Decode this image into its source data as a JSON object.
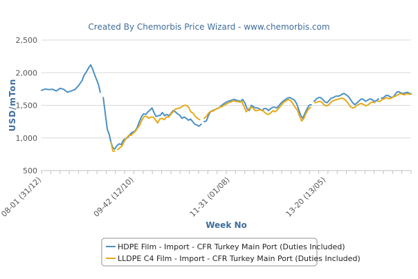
{
  "chart_data": {
    "type": "line",
    "title": "Created By Chemorbis Price Wizard - www.chemorbis.com",
    "xlabel": "Week No",
    "ylabel": "USD/mTon",
    "ylim": [
      500,
      2500
    ],
    "yticks": [
      "500",
      "1,000",
      "1,500",
      "2,000",
      "2,500"
    ],
    "x_range": [
      0,
      100
    ],
    "x_ticks": [
      {
        "x": 0,
        "label": "08-01 (31/12)"
      },
      {
        "x": 25,
        "label": "09-42 (12/10)"
      },
      {
        "x": 51,
        "label": "11-31 (01/08)"
      },
      {
        "x": 77,
        "label": "13-20 (13/05)"
      }
    ],
    "grid": "horizontal",
    "legend_position": "bottom",
    "series": [
      {
        "name": "HDPE Film - Import - CFR Turkey Main Port (Duties Included)",
        "color": "#4a90c2",
        "points": [
          [
            0,
            1730
          ],
          [
            1,
            1750
          ],
          [
            2,
            1740
          ],
          [
            3,
            1745
          ],
          [
            4,
            1720
          ],
          [
            5,
            1760
          ],
          [
            6,
            1745
          ],
          [
            7,
            1700
          ],
          [
            8,
            1720
          ],
          [
            9,
            1740
          ],
          [
            10,
            1800
          ],
          [
            11,
            1880
          ],
          [
            11.5,
            1960
          ],
          [
            12,
            2000
          ],
          [
            12.8,
            2080
          ],
          [
            13.3,
            2120
          ],
          [
            13.8,
            2060
          ],
          [
            14.5,
            1950
          ],
          [
            15,
            1880
          ],
          [
            15.4,
            1820
          ],
          [
            15.9,
            1700
          ],
          [
            null,
            null
          ],
          [
            16.7,
            1620
          ],
          [
            17.3,
            1350
          ],
          [
            17.8,
            1130
          ],
          [
            18.3,
            1060
          ],
          [
            18.8,
            930
          ],
          [
            19.3,
            850
          ],
          [
            19.8,
            830
          ],
          [
            20.4,
            880
          ],
          [
            21,
            910
          ],
          [
            21.6,
            900
          ],
          [
            22.2,
            970
          ],
          [
            22.8,
            990
          ],
          [
            23.4,
            1010
          ],
          [
            24,
            1060
          ],
          [
            24.6,
            1090
          ],
          [
            25.2,
            1100
          ],
          [
            25.8,
            1150
          ],
          [
            26.4,
            1240
          ],
          [
            27,
            1320
          ],
          [
            27.6,
            1370
          ],
          [
            28.2,
            1360
          ],
          [
            28.8,
            1400
          ],
          [
            29.4,
            1430
          ],
          [
            29.9,
            1460
          ],
          [
            30.5,
            1380
          ],
          [
            31,
            1330
          ],
          [
            31.6,
            1340
          ],
          [
            32.2,
            1350
          ],
          [
            32.7,
            1390
          ],
          [
            33.3,
            1340
          ],
          [
            33.9,
            1360
          ],
          [
            34.5,
            1340
          ],
          [
            35.1,
            1380
          ],
          [
            35.6,
            1420
          ],
          [
            36.2,
            1400
          ],
          [
            36.8,
            1370
          ],
          [
            37.4,
            1350
          ],
          [
            38,
            1300
          ],
          [
            38.6,
            1320
          ],
          [
            39.2,
            1300
          ],
          [
            39.8,
            1270
          ],
          [
            40.3,
            1290
          ],
          [
            40.9,
            1250
          ],
          [
            41.5,
            1210
          ],
          [
            42,
            1200
          ],
          [
            42.6,
            1180
          ],
          [
            43.2,
            1210
          ],
          [
            null,
            null
          ],
          [
            44,
            1250
          ],
          [
            44.6,
            1260
          ],
          [
            45.2,
            1350
          ],
          [
            45.7,
            1400
          ],
          [
            46.3,
            1420
          ],
          [
            46.9,
            1430
          ],
          [
            47.5,
            1450
          ],
          [
            48,
            1460
          ],
          [
            48.6,
            1490
          ],
          [
            49.2,
            1520
          ],
          [
            49.8,
            1540
          ],
          [
            50.4,
            1560
          ],
          [
            51,
            1570
          ],
          [
            51.5,
            1580
          ],
          [
            52.1,
            1590
          ],
          [
            52.7,
            1580
          ],
          [
            53.3,
            1570
          ],
          [
            53.9,
            1560
          ],
          [
            54.4,
            1590
          ],
          [
            55,
            1540
          ],
          [
            55.6,
            1450
          ],
          [
            56.2,
            1420
          ],
          [
            56.8,
            1500
          ],
          [
            57.3,
            1480
          ],
          [
            57.9,
            1460
          ],
          [
            58.5,
            1460
          ],
          [
            59.1,
            1440
          ],
          [
            59.7,
            1420
          ],
          [
            60.2,
            1450
          ],
          [
            60.8,
            1450
          ],
          [
            61.4,
            1420
          ],
          [
            62,
            1450
          ],
          [
            62.6,
            1470
          ],
          [
            63.1,
            1470
          ],
          [
            63.7,
            1460
          ],
          [
            64.3,
            1500
          ],
          [
            64.9,
            1540
          ],
          [
            65.5,
            1570
          ],
          [
            66,
            1590
          ],
          [
            66.6,
            1610
          ],
          [
            67.2,
            1620
          ],
          [
            67.8,
            1600
          ],
          [
            68.4,
            1580
          ],
          [
            69,
            1530
          ],
          [
            69.5,
            1450
          ],
          [
            70.1,
            1350
          ],
          [
            70.7,
            1300
          ],
          [
            71.3,
            1380
          ],
          [
            71.9,
            1450
          ],
          [
            72.4,
            1500
          ],
          [
            73,
            1510
          ],
          [
            null,
            null
          ],
          [
            73.8,
            1560
          ],
          [
            74.4,
            1600
          ],
          [
            75,
            1620
          ],
          [
            75.5,
            1620
          ],
          [
            76.1,
            1590
          ],
          [
            76.7,
            1550
          ],
          [
            77.3,
            1540
          ],
          [
            77.9,
            1580
          ],
          [
            78.4,
            1610
          ],
          [
            79,
            1620
          ],
          [
            79.6,
            1640
          ],
          [
            80.2,
            1640
          ],
          [
            80.8,
            1650
          ],
          [
            81.3,
            1670
          ],
          [
            81.9,
            1680
          ],
          [
            82.5,
            1660
          ],
          [
            83.1,
            1630
          ],
          [
            83.7,
            1580
          ],
          [
            84.2,
            1540
          ],
          [
            84.8,
            1510
          ],
          [
            85.4,
            1540
          ],
          [
            86,
            1570
          ],
          [
            86.6,
            1600
          ],
          [
            87.1,
            1590
          ],
          [
            87.7,
            1560
          ],
          [
            88.3,
            1580
          ],
          [
            88.9,
            1600
          ],
          [
            89.4,
            1590
          ],
          [
            90,
            1560
          ],
          [
            90.6,
            1570
          ],
          [
            91.2,
            1600
          ],
          [
            null,
            null
          ],
          [
            92,
            1610
          ],
          [
            92.6,
            1620
          ],
          [
            93.2,
            1650
          ],
          [
            93.8,
            1650
          ],
          [
            94.3,
            1630
          ],
          [
            94.9,
            1620
          ],
          [
            95.5,
            1650
          ],
          [
            96.1,
            1700
          ],
          [
            96.7,
            1710
          ],
          [
            97.2,
            1690
          ],
          [
            97.8,
            1680
          ],
          [
            98.4,
            1690
          ],
          [
            99,
            1700
          ],
          [
            99.6,
            1680
          ],
          [
            100,
            1680
          ]
        ]
      },
      {
        "name": "LLDPE C4 Film - Import - CFR Turkey Main Port (Duties Included)",
        "color": "#e6a817",
        "points": [
          [
            18.8,
            930
          ],
          [
            19.3,
            800
          ],
          [
            19.8,
            800
          ],
          [
            null,
            null
          ],
          [
            20.6,
            820
          ],
          [
            21.2,
            850
          ],
          [
            21.8,
            880
          ],
          [
            22.4,
            950
          ],
          [
            23,
            1000
          ],
          [
            23.6,
            1040
          ],
          [
            24.2,
            1040
          ],
          [
            24.8,
            1070
          ],
          [
            25.4,
            1100
          ],
          [
            26,
            1150
          ],
          [
            26.6,
            1200
          ],
          [
            27.2,
            1280
          ],
          [
            27.8,
            1330
          ],
          [
            28.4,
            1330
          ],
          [
            29,
            1300
          ],
          [
            29.6,
            1320
          ],
          [
            30.2,
            1320
          ],
          [
            30.8,
            1280
          ],
          [
            31.4,
            1230
          ],
          [
            32,
            1290
          ],
          [
            32.6,
            1300
          ],
          [
            33.2,
            1280
          ],
          [
            33.8,
            1320
          ],
          [
            34.4,
            1320
          ],
          [
            35,
            1360
          ],
          [
            35.6,
            1400
          ],
          [
            36.2,
            1440
          ],
          [
            36.8,
            1450
          ],
          [
            37.4,
            1460
          ],
          [
            38,
            1480
          ],
          [
            38.6,
            1500
          ],
          [
            39.2,
            1500
          ],
          [
            39.8,
            1470
          ],
          [
            40.4,
            1400
          ],
          [
            41,
            1380
          ],
          [
            41.6,
            1330
          ],
          [
            42.2,
            1300
          ],
          [
            42.8,
            1280
          ],
          [
            null,
            null
          ],
          [
            44,
            1300
          ],
          [
            44.6,
            1330
          ],
          [
            45.2,
            1380
          ],
          [
            45.8,
            1410
          ],
          [
            46.4,
            1410
          ],
          [
            47,
            1440
          ],
          [
            47.6,
            1450
          ],
          [
            48.2,
            1470
          ],
          [
            48.8,
            1480
          ],
          [
            49.4,
            1500
          ],
          [
            50,
            1520
          ],
          [
            50.6,
            1540
          ],
          [
            51.2,
            1550
          ],
          [
            51.8,
            1570
          ],
          [
            52.4,
            1560
          ],
          [
            53,
            1560
          ],
          [
            53.6,
            1550
          ],
          [
            54.2,
            1560
          ],
          [
            54.8,
            1480
          ],
          [
            55.4,
            1400
          ],
          [
            56,
            1440
          ],
          [
            56.6,
            1470
          ],
          [
            57.2,
            1460
          ],
          [
            57.8,
            1420
          ],
          [
            58.4,
            1420
          ],
          [
            59,
            1430
          ],
          [
            59.6,
            1430
          ],
          [
            60.2,
            1400
          ],
          [
            60.8,
            1370
          ],
          [
            61.4,
            1360
          ],
          [
            62,
            1380
          ],
          [
            62.6,
            1420
          ],
          [
            63.2,
            1400
          ],
          [
            63.8,
            1430
          ],
          [
            64.4,
            1470
          ],
          [
            65,
            1510
          ],
          [
            65.6,
            1550
          ],
          [
            66.2,
            1570
          ],
          [
            66.8,
            1590
          ],
          [
            67.4,
            1570
          ],
          [
            68,
            1530
          ],
          [
            68.6,
            1470
          ],
          [
            69.2,
            1430
          ],
          [
            69.8,
            1340
          ],
          [
            70.4,
            1260
          ],
          [
            71,
            1300
          ],
          [
            71.6,
            1380
          ],
          [
            72.2,
            1440
          ],
          [
            72.8,
            1470
          ],
          [
            null,
            null
          ],
          [
            74,
            1540
          ],
          [
            74.6,
            1550
          ],
          [
            75.2,
            1560
          ],
          [
            75.8,
            1550
          ],
          [
            76.4,
            1510
          ],
          [
            77,
            1490
          ],
          [
            77.6,
            1500
          ],
          [
            78.2,
            1540
          ],
          [
            78.8,
            1570
          ],
          [
            79.4,
            1580
          ],
          [
            80,
            1590
          ],
          [
            80.6,
            1600
          ],
          [
            81.2,
            1610
          ],
          [
            81.8,
            1600
          ],
          [
            82.4,
            1570
          ],
          [
            83,
            1530
          ],
          [
            83.6,
            1480
          ],
          [
            84.2,
            1460
          ],
          [
            84.8,
            1470
          ],
          [
            85.4,
            1500
          ],
          [
            86,
            1520
          ],
          [
            86.6,
            1530
          ],
          [
            87.2,
            1510
          ],
          [
            87.8,
            1490
          ],
          [
            88.4,
            1510
          ],
          [
            89,
            1540
          ],
          [
            89.6,
            1550
          ],
          [
            90.2,
            1540
          ],
          [
            null,
            null
          ],
          [
            91,
            1560
          ],
          [
            91.6,
            1560
          ],
          [
            92.2,
            1590
          ],
          [
            92.8,
            1600
          ],
          [
            93.4,
            1620
          ],
          [
            94,
            1600
          ],
          [
            94.6,
            1610
          ],
          [
            95.2,
            1630
          ],
          [
            95.8,
            1640
          ],
          [
            96.4,
            1660
          ],
          [
            97,
            1680
          ],
          [
            97.6,
            1670
          ],
          [
            98.2,
            1660
          ],
          [
            98.8,
            1680
          ],
          [
            99.4,
            1670
          ],
          [
            100,
            1670
          ]
        ]
      }
    ]
  }
}
